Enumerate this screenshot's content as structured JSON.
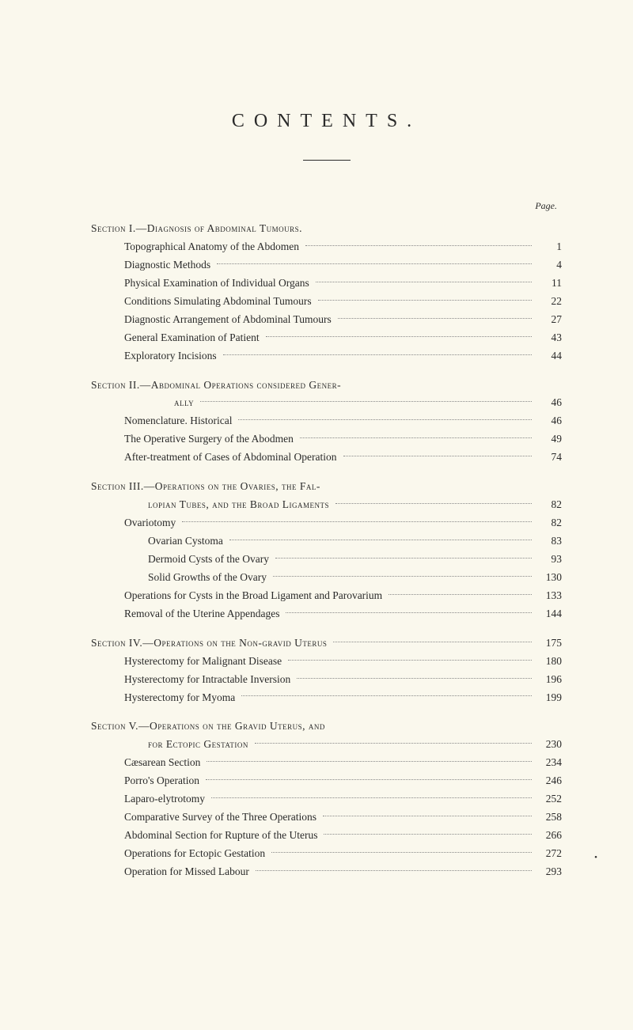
{
  "title": "CONTENTS.",
  "page_label": "Page.",
  "colors": {
    "background": "#faf8ed",
    "text": "#2a2a2a",
    "dots": "#888888"
  },
  "typography": {
    "title_fontsize": 24,
    "title_letterspacing": 12,
    "body_fontsize": 13.5,
    "font_family": "Georgia, Times New Roman, serif"
  },
  "sections": [
    {
      "header_label": "Section I.—",
      "header_title": "Diagnosis of Abdominal Tumours.",
      "header_page": "",
      "entries": [
        {
          "label": "Topographical Anatomy of the Abdomen",
          "page": "1",
          "indent": 1
        },
        {
          "label": "Diagnostic Methods",
          "page": "4",
          "indent": 1
        },
        {
          "label": "Physical Examination of Individual Organs",
          "page": "11",
          "indent": 1
        },
        {
          "label": "Conditions Simulating Abdominal Tumours",
          "page": "22",
          "indent": 1
        },
        {
          "label": "Diagnostic Arrangement of Abdominal Tumours",
          "page": "27",
          "indent": 1
        },
        {
          "label": "General Examination of Patient",
          "page": "43",
          "indent": 1
        },
        {
          "label": "Exploratory Incisions",
          "page": "44",
          "indent": 1
        }
      ]
    },
    {
      "header_label": "Section II.—",
      "header_title": "Abdominal Operations considered Gener-",
      "continuation": "ally",
      "continuation_page": "46",
      "entries": [
        {
          "label": "Nomenclature.   Historical",
          "page": "46",
          "indent": 1
        },
        {
          "label": "The Operative Surgery of the Abodmen",
          "page": "49",
          "indent": 1
        },
        {
          "label": "After-treatment of Cases of Abdominal Operation",
          "page": "74",
          "indent": 1
        }
      ]
    },
    {
      "header_label": "Section III.—",
      "header_title": "Operations on the Ovaries, the Fal-",
      "continuation_sc": "lopian Tubes, and the Broad Ligaments",
      "continuation_page": "82",
      "entries": [
        {
          "label": "Ovariotomy",
          "page": "82",
          "indent": 1
        },
        {
          "label": "Ovarian Cystoma",
          "page": "83",
          "indent": 2
        },
        {
          "label": "Dermoid Cysts of the Ovary",
          "page": "93",
          "indent": 2
        },
        {
          "label": "Solid Growths of the Ovary",
          "page": "130",
          "indent": 2
        },
        {
          "label": "Operations for Cysts in the Broad Ligament and Parovarium",
          "page": "133",
          "indent": 1
        },
        {
          "label": "Removal of the Uterine Appendages",
          "page": "144",
          "indent": 1
        }
      ]
    },
    {
      "header_label": "Section IV.—",
      "header_title": "Operations on the Non-gravid Uterus",
      "header_page": "175",
      "header_inline": true,
      "entries": [
        {
          "label": "Hysterectomy for Malignant Disease",
          "page": "180",
          "indent": 1
        },
        {
          "label": "Hysterectomy for Intractable Inversion",
          "page": "196",
          "indent": 1
        },
        {
          "label": "Hysterectomy for Myoma",
          "page": "199",
          "indent": 1
        }
      ]
    },
    {
      "header_label": "Section V.—",
      "header_title": "Operations on the Gravid Uterus, and",
      "continuation_sc": "for Ectopic Gestation",
      "continuation_page": "230",
      "entries": [
        {
          "label": "Cæsarean Section",
          "page": "234",
          "indent": 1
        },
        {
          "label": "Porro's Operation",
          "page": "246",
          "indent": 1
        },
        {
          "label": "Laparo-elytrotomy",
          "page": "252",
          "indent": 1
        },
        {
          "label": "Comparative Survey of the Three Operations",
          "page": "258",
          "indent": 1
        },
        {
          "label": "Abdominal Section for Rupture of the Uterus",
          "page": "266",
          "indent": 1
        },
        {
          "label": "Operations for Ectopic Gestation",
          "page": "272",
          "indent": 1
        },
        {
          "label": "Operation for Missed Labour",
          "page": "293",
          "indent": 1
        }
      ]
    }
  ]
}
